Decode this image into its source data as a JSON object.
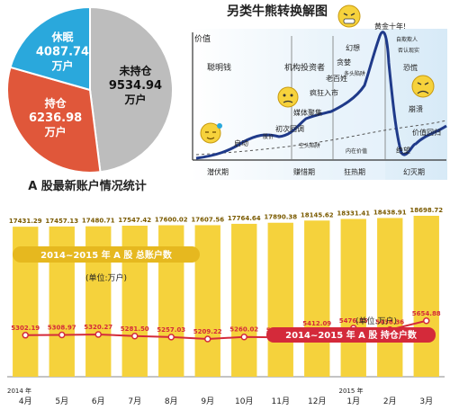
{
  "pie": {
    "title": "A 股最新账户情况统计",
    "slices": [
      {
        "label": "未持仓",
        "value": 9534.94,
        "unit": "万户",
        "color": "#bdbdbd"
      },
      {
        "label": "持仓",
        "value": 6236.98,
        "unit": "万户",
        "color": "#e0573a"
      },
      {
        "label": "休眠",
        "value": 4087.74,
        "unit": "万户",
        "color": "#2aa8dc"
      }
    ]
  },
  "cycle": {
    "title": "另类牛熊转换解图",
    "axis_label": "价值",
    "phases": [
      "潜伏期",
      "赚惜期",
      "狂热期",
      "幻灭期"
    ],
    "labels": {
      "smart_money": "聪明钱",
      "institutions": "机构投资者",
      "start": "启动",
      "stock_price": "股价",
      "first_pullback": "初次回调",
      "media": "媒体聚集",
      "bear_trap": "空头陷阱",
      "frenzy": "疯狂入市",
      "public": "老百姓",
      "greed": "贪婪",
      "illusion": "幻想",
      "new_paradigm": "黄金十年!",
      "bull_trap": "多头陷阱",
      "self_satisfied": "自欺欺人",
      "denial": "否认现实",
      "fear": "恐慌",
      "capitulation": "崩溃",
      "despair": "绝望",
      "mean_return": "价值回归",
      "intrinsic": "内在价值"
    }
  },
  "chart_data": {
    "type": "bar",
    "categories": [
      "4月",
      "5月",
      "6月",
      "7月",
      "8月",
      "9月",
      "10月",
      "11月",
      "12月",
      "1月",
      "2月",
      "3月"
    ],
    "year_labels": [
      "2014 年",
      "2015 年"
    ],
    "series": [
      {
        "name": "2014~2015 年 A 股 总账户数",
        "type": "bar",
        "unit": "(单位:万户)",
        "color": "#f5d23c",
        "values": [
          17431.29,
          17457.13,
          17480.71,
          17547.42,
          17600.02,
          17607.56,
          17764.64,
          17890.38,
          18145.62,
          18331.41,
          18438.91,
          18698.72
        ]
      },
      {
        "name": "2014~2015 年 A 股 持仓户数",
        "type": "line",
        "unit": "(单位:万户)",
        "color": "#d42a3a",
        "values": [
          5302.19,
          5308.97,
          5320.27,
          5281.5,
          5257.03,
          5209.22,
          5260.02,
          5248.45,
          5412.09,
          5476.35,
          5436.36,
          5654.88
        ]
      }
    ]
  }
}
